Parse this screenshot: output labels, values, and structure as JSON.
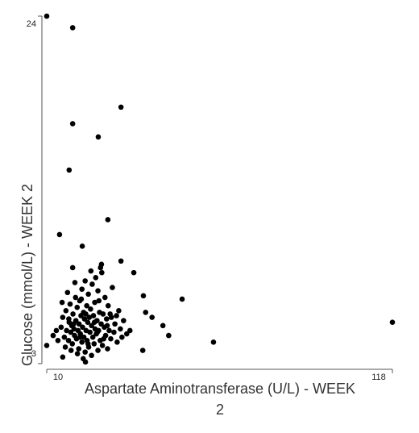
{
  "chart_data": {
    "type": "scatter",
    "xlabel": "Aspartate Aminotransferase (U/L) - WEEK 2",
    "ylabel": "Glucose (mmol/L) - WEEK 2",
    "xlim": [
      10,
      118
    ],
    "xticks": [
      10,
      118
    ],
    "ylim": [
      3,
      24
    ],
    "yticks": [
      3,
      24
    ],
    "color": "#000000",
    "x": [
      10,
      18.1,
      33.2,
      18.1,
      26.1,
      17.0,
      29.1,
      14.0,
      21.1,
      33.2,
      37.2,
      18.1,
      27.1,
      40.2,
      52.3,
      40.9,
      42.9,
      46.3,
      48.1,
      62.1,
      118,
      40.0,
      10,
      22.1,
      15.0,
      14.5,
      15.0,
      15.5,
      16.0,
      16.2,
      16.8,
      17.0,
      17.3,
      17.5,
      17.8,
      18.0,
      18.2,
      18.5,
      18.7,
      19.0,
      19.1,
      19.3,
      19.5,
      19.8,
      20.0,
      20.1,
      20.3,
      20.5,
      20.7,
      21.0,
      21.0,
      21.2,
      21.5,
      21.6,
      21.8,
      22.0,
      22.0,
      22.3,
      22.5,
      22.6,
      22.8,
      23.0,
      23.1,
      23.3,
      23.5,
      23.7,
      24.0,
      24.0,
      24.2,
      24.4,
      24.6,
      24.8,
      25.0,
      25.1,
      25.3,
      25.5,
      25.7,
      26.0,
      26.0,
      26.2,
      26.5,
      26.7,
      27.0,
      27.2,
      27.4,
      27.6,
      28.0,
      28.2,
      28.4,
      28.7,
      29.0,
      29.2,
      29.5,
      30.0,
      30.2,
      30.5,
      31.0,
      31.3,
      32.0,
      32.5,
      33.0,
      33.5,
      34.0,
      35.0,
      36.0,
      17.6,
      19.6,
      21.4,
      15.8,
      14.8,
      16.5,
      18.8,
      23.8,
      26.8,
      20.8,
      22.2,
      24.9,
      27.8,
      18.4,
      20.4,
      25.8,
      29.8,
      13.5,
      13.0,
      12.0,
      31.8,
      16.9,
      28.9,
      26.3,
      22.9
    ],
    "values": [
      24,
      23.3,
      18.5,
      17.5,
      16.7,
      14.7,
      11.7,
      10.8,
      10.1,
      9.2,
      8.5,
      8.8,
      9.0,
      7.1,
      6.9,
      6.1,
      5.8,
      5.3,
      4.7,
      4.3,
      5.5,
      3.8,
      4.1,
      3.1,
      3.4,
      5.2,
      5.8,
      4.6,
      6.2,
      5.0,
      4.4,
      5.5,
      6.6,
      4.9,
      5.3,
      4.2,
      6.0,
      5.1,
      4.7,
      7.0,
      5.6,
      4.5,
      6.4,
      5.0,
      3.9,
      5.4,
      6.8,
      4.8,
      5.9,
      4.3,
      7.5,
      5.2,
      6.1,
      4.6,
      5.7,
      3.7,
      8.0,
      5.0,
      6.5,
      4.4,
      5.5,
      7.2,
      4.0,
      5.8,
      4.9,
      6.3,
      5.3,
      3.5,
      7.8,
      4.6,
      5.9,
      4.2,
      6.7,
      5.1,
      8.2,
      4.8,
      5.6,
      3.8,
      7.4,
      5.0,
      6.1,
      4.4,
      5.4,
      8.5,
      4.1,
      6.0,
      5.2,
      7.0,
      4.7,
      5.7,
      3.9,
      6.5,
      5.0,
      4.5,
      5.8,
      7.6,
      4.9,
      5.4,
      4.3,
      6.2,
      5.1,
      4.6,
      5.6,
      4.8,
      5.0,
      3.8,
      3.6,
      3.3,
      4.0,
      6.7,
      7.3,
      7.9,
      8.6,
      8.8,
      6.9,
      6.0,
      5.5,
      4.5,
      5.4,
      4.6,
      4.9,
      6.0,
      4.4,
      5.0,
      4.7,
      5.9,
      5.7,
      5.3,
      6.8,
      4.2
    ]
  }
}
